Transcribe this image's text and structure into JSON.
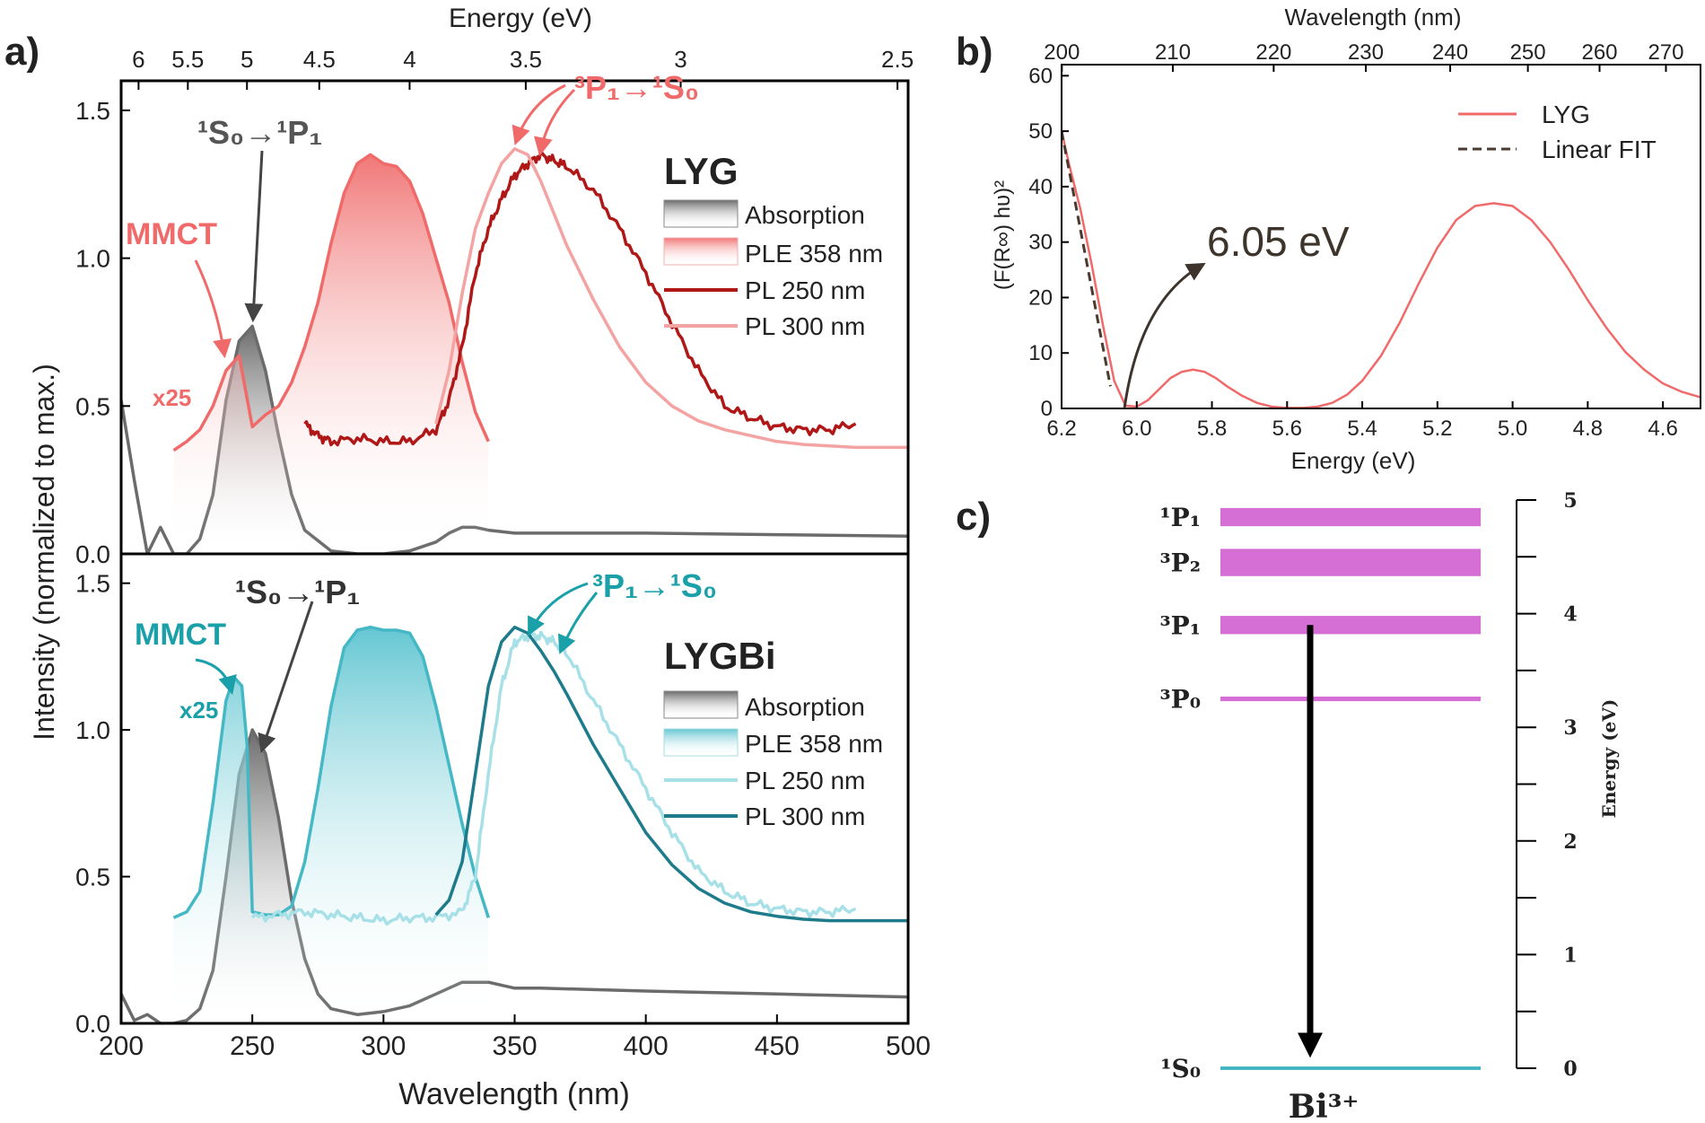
{
  "chart_data": [
    {
      "panel": "a)",
      "type": "line",
      "xlabel": "Wavelength (nm)",
      "x_ticks": [
        200,
        250,
        300,
        350,
        400,
        450,
        500
      ],
      "xlim": [
        200,
        500
      ],
      "top_xlabel": "Energy (eV)",
      "top_ticks": [
        "6",
        "5.5",
        "5",
        "4.5",
        "4",
        "3.5",
        "3",
        "2.5"
      ],
      "ylabel": "Intensity (normalized to max.)",
      "y_ticks": [
        "0.0",
        "0.5",
        "1.0",
        "1.5"
      ],
      "ylim": [
        0,
        1.6
      ],
      "subplots": [
        {
          "name": "LYG",
          "legend_title": "LYG",
          "legend": [
            "Absorption",
            "PLE 358 nm",
            "PL 250 nm",
            "PL 300 nm"
          ],
          "annotations": {
            "transition_abs": "¹S₀→¹P₁",
            "transition_em": "³P₁→¹S₀",
            "mmct": "MMCT",
            "scale": "x25"
          },
          "colors": {
            "absorption": "#6b6b6b",
            "ple": "#f06a6a",
            "pl250": "#b01818",
            "pl300": "#f4a3a3",
            "label": "#f06a6a"
          },
          "series": [
            {
              "name": "Absorption",
              "x": [
                200,
                205,
                210,
                215,
                220,
                225,
                230,
                235,
                240,
                245,
                250,
                255,
                260,
                265,
                270,
                280,
                290,
                300,
                310,
                320,
                325,
                330,
                335,
                340,
                350,
                360,
                380,
                400,
                450,
                500
              ],
              "y": [
                0.52,
                0.25,
                0.0,
                0.09,
                0.0,
                0.0,
                0.05,
                0.2,
                0.52,
                0.72,
                0.77,
                0.62,
                0.4,
                0.2,
                0.08,
                0.01,
                0.0,
                0.0,
                0.01,
                0.04,
                0.07,
                0.09,
                0.09,
                0.08,
                0.07,
                0.07,
                0.07,
                0.07,
                0.065,
                0.06
              ]
            },
            {
              "name": "PLE 358 nm",
              "x": [
                220,
                225,
                230,
                235,
                240,
                245,
                250,
                255,
                260,
                265,
                270,
                275,
                280,
                285,
                290,
                295,
                300,
                305,
                310,
                315,
                320,
                325,
                330,
                335,
                340
              ],
              "y": [
                0.35,
                0.38,
                0.42,
                0.5,
                0.62,
                0.67,
                0.43,
                0.47,
                0.5,
                0.58,
                0.7,
                0.85,
                1.05,
                1.22,
                1.32,
                1.35,
                1.32,
                1.31,
                1.26,
                1.15,
                1.0,
                0.85,
                0.65,
                0.48,
                0.38
              ]
            },
            {
              "name": "PL 250 nm",
              "x": [
                270,
                275,
                280,
                290,
                300,
                310,
                320,
                325,
                330,
                335,
                340,
                345,
                350,
                355,
                360,
                365,
                370,
                380,
                390,
                400,
                410,
                420,
                430,
                440,
                450,
                460,
                470,
                480
              ],
              "y": [
                0.44,
                0.4,
                0.38,
                0.39,
                0.38,
                0.38,
                0.42,
                0.52,
                0.7,
                0.95,
                1.1,
                1.2,
                1.28,
                1.32,
                1.35,
                1.33,
                1.31,
                1.23,
                1.1,
                0.95,
                0.78,
                0.62,
                0.5,
                0.46,
                0.43,
                0.42,
                0.42,
                0.44
              ]
            },
            {
              "name": "PL 300 nm",
              "x": [
                320,
                325,
                330,
                335,
                340,
                345,
                350,
                355,
                360,
                365,
                370,
                380,
                390,
                400,
                410,
                420,
                430,
                440,
                450,
                460,
                470,
                480,
                490,
                500
              ],
              "y": [
                0.44,
                0.62,
                0.88,
                1.1,
                1.22,
                1.32,
                1.37,
                1.35,
                1.26,
                1.15,
                1.04,
                0.86,
                0.7,
                0.58,
                0.5,
                0.45,
                0.42,
                0.4,
                0.38,
                0.37,
                0.365,
                0.36,
                0.36,
                0.36
              ]
            }
          ]
        },
        {
          "name": "LYGBi",
          "legend_title": "LYGBi",
          "legend": [
            "Absorption",
            "PLE 358 nm",
            "PL 250 nm",
            "PL 300 nm"
          ],
          "annotations": {
            "transition_abs": "¹S₀→¹P₁",
            "transition_em": "³P₁→¹S₀",
            "mmct": "MMCT",
            "scale": "x25"
          },
          "colors": {
            "absorption": "#6b6b6b",
            "ple": "#45b8c6",
            "pl250": "#a8e0e8",
            "pl300": "#1e7b8b",
            "label": "#1aa0a8"
          },
          "series": [
            {
              "name": "Absorption",
              "x": [
                200,
                205,
                210,
                215,
                220,
                225,
                230,
                235,
                240,
                245,
                250,
                255,
                260,
                265,
                270,
                275,
                280,
                290,
                300,
                310,
                320,
                330,
                335,
                340,
                350,
                360,
                380,
                400,
                450,
                500
              ],
              "y": [
                0.1,
                0.01,
                0.03,
                0.0,
                0.0,
                0.01,
                0.05,
                0.18,
                0.5,
                0.85,
                1.0,
                0.92,
                0.7,
                0.42,
                0.22,
                0.1,
                0.05,
                0.03,
                0.04,
                0.06,
                0.1,
                0.14,
                0.14,
                0.14,
                0.12,
                0.12,
                0.115,
                0.11,
                0.1,
                0.09
              ]
            },
            {
              "name": "PLE 358 nm",
              "x": [
                220,
                225,
                230,
                235,
                240,
                243,
                246,
                248,
                250,
                255,
                260,
                265,
                270,
                275,
                280,
                285,
                290,
                295,
                300,
                305,
                310,
                315,
                320,
                325,
                330,
                335,
                340
              ],
              "y": [
                0.36,
                0.38,
                0.45,
                0.75,
                1.1,
                1.18,
                1.15,
                0.95,
                0.38,
                0.37,
                0.37,
                0.4,
                0.55,
                0.8,
                1.08,
                1.28,
                1.34,
                1.35,
                1.34,
                1.34,
                1.33,
                1.25,
                1.08,
                0.88,
                0.68,
                0.5,
                0.36
              ]
            },
            {
              "name": "PL 250 nm",
              "x": [
                250,
                260,
                270,
                280,
                290,
                300,
                310,
                320,
                330,
                335,
                340,
                345,
                350,
                355,
                360,
                365,
                370,
                380,
                390,
                400,
                410,
                420,
                430,
                440,
                450,
                460,
                470,
                480
              ],
              "y": [
                0.36,
                0.37,
                0.38,
                0.37,
                0.36,
                0.35,
                0.36,
                0.36,
                0.38,
                0.5,
                0.85,
                1.15,
                1.3,
                1.32,
                1.32,
                1.3,
                1.26,
                1.1,
                0.95,
                0.8,
                0.65,
                0.52,
                0.45,
                0.41,
                0.39,
                0.38,
                0.38,
                0.39
              ]
            },
            {
              "name": "PL 300 nm",
              "x": [
                320,
                325,
                330,
                335,
                340,
                345,
                350,
                355,
                360,
                365,
                370,
                380,
                390,
                400,
                410,
                420,
                430,
                440,
                450,
                460,
                470,
                480,
                490,
                500
              ],
              "y": [
                0.37,
                0.42,
                0.55,
                0.85,
                1.15,
                1.3,
                1.35,
                1.33,
                1.27,
                1.2,
                1.12,
                0.95,
                0.8,
                0.65,
                0.54,
                0.46,
                0.41,
                0.38,
                0.365,
                0.355,
                0.35,
                0.35,
                0.35,
                0.35
              ]
            }
          ]
        }
      ]
    },
    {
      "panel": "b)",
      "type": "line",
      "xlabel": "Energy (eV)",
      "x_ticks": [
        "6.2",
        "6.0",
        "5.8",
        "5.6",
        "5.4",
        "5.2",
        "5.0",
        "4.8",
        "4.6"
      ],
      "xlim": [
        6.2,
        4.5
      ],
      "top_xlabel": "Wavelength (nm)",
      "top_ticks": [
        "200",
        "210",
        "220",
        "230",
        "240",
        "250",
        "260",
        "270"
      ],
      "ylabel": "(F(R∞) hυ)²",
      "y_ticks": [
        "0",
        "10",
        "20",
        "30",
        "40",
        "50",
        "60"
      ],
      "ylim": [
        0,
        62
      ],
      "legend": [
        "LYG",
        "Linear FIT"
      ],
      "annotation": "6.05 eV",
      "colors": {
        "lyg": "#f06a6a",
        "fit": "#4a3a30"
      },
      "series": [
        {
          "name": "LYG",
          "x": [
            6.2,
            6.18,
            6.15,
            6.12,
            6.09,
            6.06,
            6.03,
            6.0,
            5.97,
            5.94,
            5.91,
            5.88,
            5.85,
            5.82,
            5.79,
            5.76,
            5.72,
            5.68,
            5.64,
            5.6,
            5.56,
            5.52,
            5.48,
            5.44,
            5.4,
            5.35,
            5.3,
            5.25,
            5.2,
            5.15,
            5.1,
            5.05,
            5.0,
            4.95,
            4.9,
            4.85,
            4.8,
            4.75,
            4.7,
            4.65,
            4.6,
            4.55,
            4.5
          ],
          "y": [
            50,
            44,
            36,
            26,
            15,
            5,
            0.5,
            0.3,
            1.5,
            3.5,
            5.5,
            6.6,
            7.0,
            6.6,
            5.5,
            4.0,
            2.3,
            1.0,
            0.3,
            0.1,
            0.1,
            0.3,
            1.0,
            2.5,
            5.0,
            9.5,
            15.5,
            22.5,
            29,
            34,
            36.5,
            37,
            36.5,
            34,
            30,
            25,
            19.5,
            14.5,
            10.2,
            7.0,
            4.5,
            3.0,
            2.0
          ]
        },
        {
          "name": "Linear FIT",
          "x": [
            6.2,
            6.07
          ],
          "y": [
            50,
            4
          ]
        }
      ]
    },
    {
      "panel": "c)",
      "type": "diagram",
      "ion": "Bi³⁺",
      "ylabel": "Energy (eV)",
      "y_ticks": [
        "0",
        "1",
        "2",
        "3",
        "4",
        "5"
      ],
      "levels": [
        {
          "label": "¹P₁",
          "energy": 4.85,
          "width": 0.16
        },
        {
          "label": "³P₂",
          "energy": 4.45,
          "width": 0.24
        },
        {
          "label": "³P₁",
          "energy": 3.9,
          "width": 0.16
        },
        {
          "label": "³P₀",
          "energy": 3.25,
          "width": 0.04
        },
        {
          "label": "¹S₀",
          "energy": 0.0,
          "width": 0.03
        }
      ],
      "transition": {
        "from": "³P₁",
        "to": "¹S₀"
      },
      "colors": {
        "level": "#d56fd6",
        "ground": "#3fb2c4",
        "arrow": "#000000"
      }
    }
  ],
  "panel_labels": [
    "a)",
    "b)",
    "c)"
  ]
}
